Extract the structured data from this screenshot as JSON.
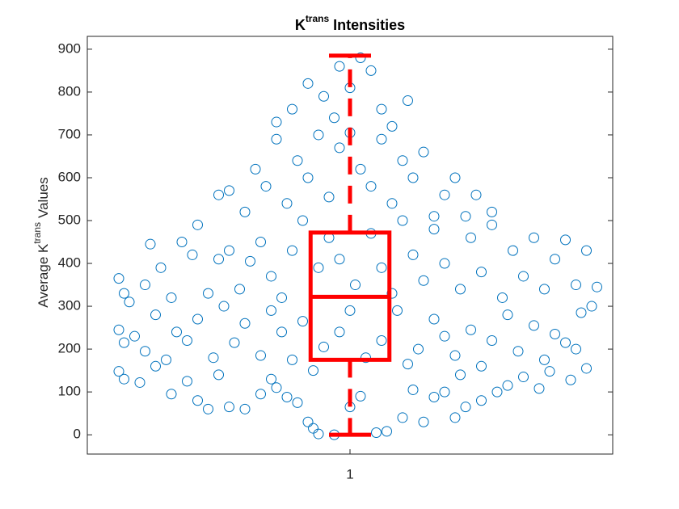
{
  "chart_data": {
    "type": "box",
    "title": {
      "base": "K",
      "sup": "trans",
      "rest": "Intensities"
    },
    "ylabel": {
      "base": "Average K",
      "sup": "trans",
      "rest": "Values"
    },
    "categories": [
      "1"
    ],
    "xlim": [
      0.5,
      1.5
    ],
    "ylim": [
      -45,
      930
    ],
    "yticks": [
      0,
      100,
      200,
      300,
      400,
      500,
      600,
      700,
      800,
      900
    ],
    "box": {
      "min": 0,
      "q1": 175,
      "median": 322,
      "q3": 472,
      "max": 885,
      "color": "#ff0000"
    },
    "points": {
      "color": "#0072bd",
      "x": [
        0.56,
        0.57,
        0.6,
        0.63,
        0.66,
        0.69,
        0.71,
        0.73,
        0.77,
        0.8,
        0.83,
        0.86,
        0.88,
        0.9,
        0.92,
        0.93,
        0.94,
        0.97,
        1.0,
        1.02,
        1.05,
        1.07,
        1.1,
        1.12,
        1.14,
        1.16,
        1.18,
        1.2,
        1.22,
        1.25,
        1.28,
        1.3,
        1.33,
        1.36,
        1.38,
        1.42,
        1.45,
        0.75,
        0.85,
        1.21,
        0.56,
        0.57,
        0.59,
        0.61,
        0.63,
        0.65,
        0.67,
        0.69,
        0.71,
        0.74,
        0.76,
        0.78,
        0.8,
        0.83,
        0.85,
        0.87,
        0.89,
        0.91,
        0.93,
        0.95,
        0.98,
        1.0,
        1.03,
        1.06,
        1.09,
        1.11,
        1.13,
        1.16,
        1.18,
        1.2,
        1.23,
        1.25,
        1.27,
        1.3,
        1.32,
        1.35,
        1.37,
        1.39,
        1.41,
        1.44,
        1.46,
        1.43,
        0.56,
        0.57,
        0.58,
        0.61,
        0.62,
        0.64,
        0.66,
        0.68,
        0.7,
        0.71,
        0.73,
        0.75,
        0.77,
        0.79,
        0.81,
        0.83,
        0.85,
        0.87,
        0.89,
        0.91,
        0.94,
        0.96,
        0.98,
        1.01,
        1.04,
        1.06,
        1.08,
        1.1,
        1.12,
        1.14,
        1.16,
        1.18,
        1.21,
        1.23,
        1.25,
        1.27,
        1.29,
        1.31,
        1.33,
        1.35,
        1.37,
        1.39,
        1.41,
        1.43,
        1.45,
        1.47,
        0.75,
        0.77,
        0.8,
        0.82,
        0.84,
        0.86,
        0.88,
        0.9,
        0.92,
        0.94,
        0.96,
        0.98,
        1.02,
        1.04,
        1.06,
        1.08,
        1.1,
        1.12,
        1.14,
        1.16,
        1.18,
        1.2,
        1.22,
        1.24,
        1.27,
        0.86,
        0.89,
        0.92,
        0.95,
        0.98,
        1.0,
        1.02,
        1.04,
        1.06,
        1.08,
        1.11,
        0.97,
        1.0
      ],
      "y": [
        148,
        130,
        122,
        160,
        95,
        125,
        80,
        60,
        65,
        60,
        95,
        110,
        88,
        75,
        30,
        15,
        2,
        0,
        65,
        90,
        5,
        8,
        40,
        105,
        30,
        88,
        100,
        40,
        65,
        80,
        100,
        115,
        135,
        108,
        148,
        128,
        155,
        140,
        130,
        140,
        245,
        215,
        230,
        195,
        280,
        175,
        240,
        220,
        270,
        180,
        300,
        215,
        260,
        185,
        290,
        240,
        175,
        265,
        150,
        205,
        240,
        290,
        180,
        220,
        290,
        165,
        200,
        270,
        230,
        185,
        245,
        160,
        220,
        280,
        195,
        255,
        175,
        235,
        215,
        285,
        300,
        200,
        365,
        330,
        310,
        350,
        445,
        390,
        320,
        450,
        420,
        490,
        330,
        410,
        430,
        340,
        405,
        450,
        370,
        320,
        430,
        500,
        390,
        460,
        410,
        350,
        470,
        390,
        330,
        500,
        420,
        360,
        480,
        400,
        340,
        460,
        380,
        490,
        320,
        430,
        370,
        460,
        340,
        410,
        455,
        350,
        430,
        345,
        560,
        570,
        520,
        620,
        580,
        690,
        540,
        640,
        600,
        700,
        555,
        670,
        620,
        580,
        690,
        540,
        640,
        600,
        660,
        510,
        560,
        600,
        510,
        560,
        520,
        730,
        760,
        820,
        790,
        860,
        810,
        880,
        850,
        760,
        720,
        780,
        740,
        705
      ]
    }
  }
}
